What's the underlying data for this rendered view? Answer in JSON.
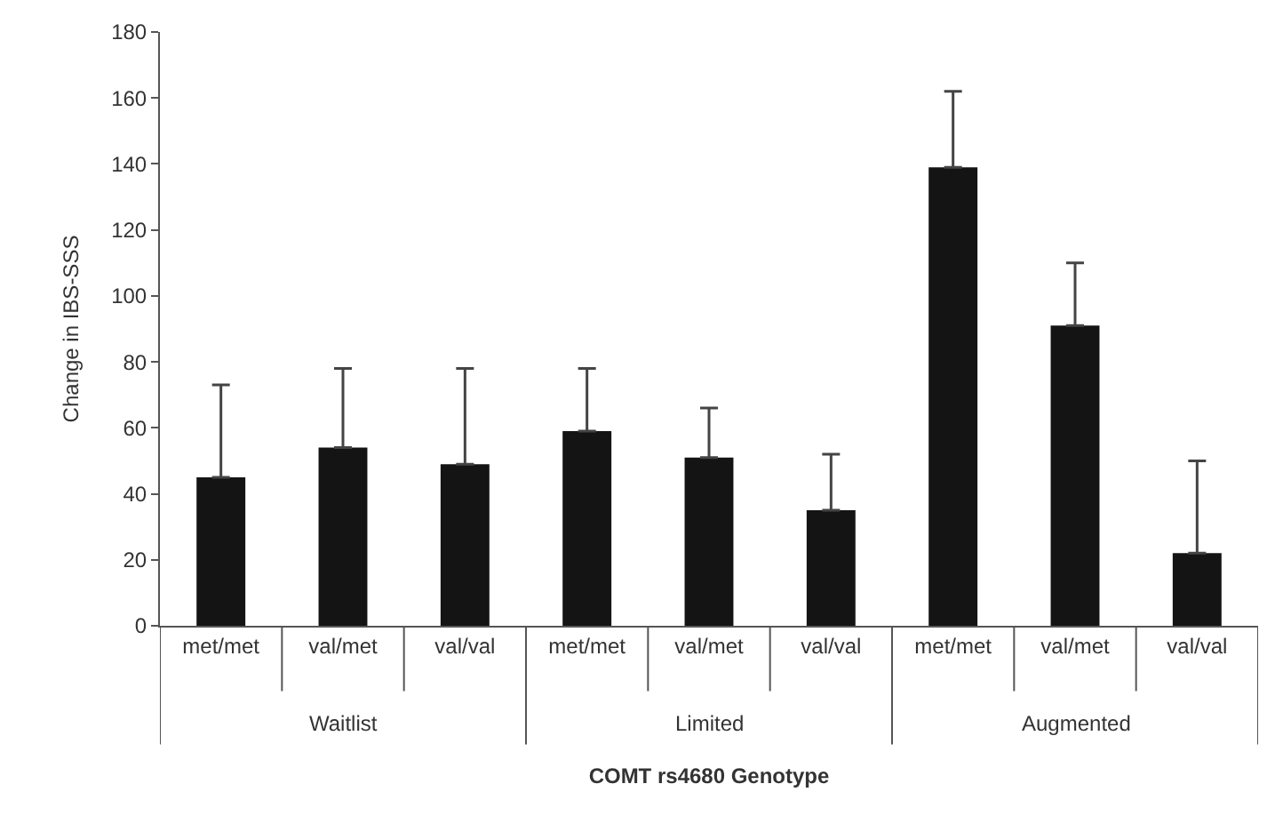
{
  "chart_data": {
    "type": "bar",
    "xlabel": "COMT rs4680 Genotype",
    "ylabel": "Change in IBS-SSS",
    "categories": [
      "met/met",
      "val/met",
      "val/val",
      "met/met",
      "val/met",
      "val/val",
      "met/met",
      "val/met",
      "val/val"
    ],
    "values": [
      45,
      54,
      49,
      59,
      51,
      35,
      139,
      91,
      22
    ],
    "errors": [
      [
        45,
        73
      ],
      [
        54,
        78
      ],
      [
        49,
        78
      ],
      [
        59,
        78
      ],
      [
        51,
        66
      ],
      [
        35,
        52
      ],
      [
        139,
        162
      ],
      [
        91,
        110
      ],
      [
        22,
        50
      ]
    ],
    "color": "#141414",
    "annotations": [
      "Waitlist",
      "Limited",
      "Augmented"
    ],
    "ylim": [
      0,
      180
    ],
    "yticks": [
      0,
      20,
      40,
      60,
      80,
      100,
      120,
      140,
      160,
      180
    ]
  }
}
